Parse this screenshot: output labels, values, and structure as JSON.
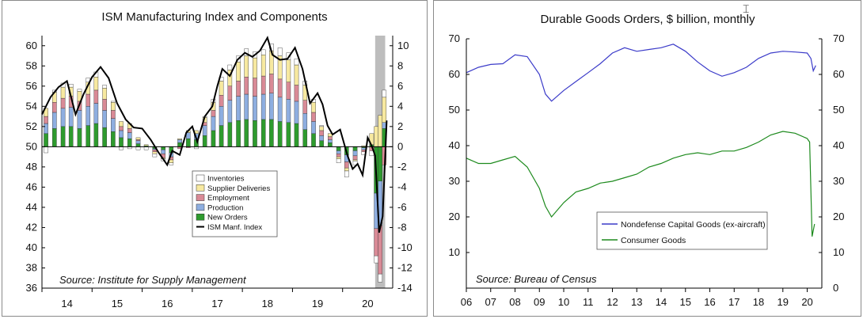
{
  "chart_data": [
    {
      "type": "bar",
      "title": "ISM Manufacturing Index and Components",
      "source": "Source: Institute for Supply Management",
      "left_axis": {
        "min": 36,
        "max": 61,
        "ticks": [
          36,
          38,
          40,
          42,
          44,
          46,
          48,
          50,
          52,
          54,
          56,
          58,
          60
        ]
      },
      "right_axis": {
        "min": -14,
        "max": 11,
        "ticks": [
          -14,
          -12,
          -10,
          -8,
          -6,
          -4,
          -2,
          0,
          2,
          4,
          6,
          8,
          10
        ]
      },
      "x_labels": [
        "14",
        "15",
        "16",
        "17",
        "18",
        "19",
        "20"
      ],
      "x_range": [
        2013.5,
        2020.5
      ],
      "recession_shade": [
        2020.15,
        2020.35
      ],
      "legend_position": "center",
      "colors": {
        "inventories": "#ffffff",
        "supplier": "#f7e9a0",
        "employment": "#d98a96",
        "production": "#8eaee0",
        "neworders": "#2e9b2e",
        "ism": "#000000",
        "shade": "#bdbdbd"
      },
      "series": [
        {
          "name": "Inventories",
          "key": "inventories"
        },
        {
          "name": "Supplier Deliveries",
          "key": "supplier"
        },
        {
          "name": "Employment",
          "key": "employment"
        },
        {
          "name": "Production",
          "key": "production"
        },
        {
          "name": "New Orders",
          "key": "neworders"
        },
        {
          "name": "ISM Manf. Index",
          "key": "ism"
        }
      ],
      "ism_points": [
        [
          2013.5,
          53.2
        ],
        [
          2013.67,
          54.9
        ],
        [
          2013.83,
          55.9
        ],
        [
          2014.0,
          56.5
        ],
        [
          2014.17,
          53.2
        ],
        [
          2014.33,
          55.2
        ],
        [
          2014.5,
          56.9
        ],
        [
          2014.67,
          57.9
        ],
        [
          2014.83,
          56.8
        ],
        [
          2015.0,
          54.3
        ],
        [
          2015.17,
          52.7
        ],
        [
          2015.33,
          51.9
        ],
        [
          2015.5,
          51.8
        ],
        [
          2015.67,
          50.7
        ],
        [
          2015.83,
          49.4
        ],
        [
          2016.0,
          48.2
        ],
        [
          2016.1,
          49.6
        ],
        [
          2016.25,
          49.2
        ],
        [
          2016.38,
          51.4
        ],
        [
          2016.5,
          52.0
        ],
        [
          2016.6,
          50.5
        ],
        [
          2016.75,
          53.0
        ],
        [
          2016.9,
          54.0
        ],
        [
          2017.0,
          56.0
        ],
        [
          2017.1,
          57.7
        ],
        [
          2017.25,
          57.0
        ],
        [
          2017.4,
          58.6
        ],
        [
          2017.55,
          59.3
        ],
        [
          2017.7,
          58.9
        ],
        [
          2017.85,
          59.5
        ],
        [
          2018.0,
          60.8
        ],
        [
          2018.1,
          59.1
        ],
        [
          2018.25,
          58.6
        ],
        [
          2018.4,
          58.7
        ],
        [
          2018.55,
          59.8
        ],
        [
          2018.7,
          57.7
        ],
        [
          2018.85,
          54.3
        ],
        [
          2019.0,
          55.3
        ],
        [
          2019.1,
          54.2
        ],
        [
          2019.2,
          52.1
        ],
        [
          2019.3,
          51.2
        ],
        [
          2019.45,
          51.7
        ],
        [
          2019.6,
          49.1
        ],
        [
          2019.7,
          47.8
        ],
        [
          2019.8,
          48.3
        ],
        [
          2019.9,
          47.2
        ],
        [
          2020.0,
          50.9
        ],
        [
          2020.08,
          50.1
        ],
        [
          2020.15,
          49.1
        ],
        [
          2020.23,
          41.5
        ],
        [
          2020.3,
          43.1
        ],
        [
          2020.38,
          52.6
        ]
      ],
      "bar_contributions": [
        [
          2013.58,
          -0.6,
          0.8,
          0.7,
          1.0,
          1.3
        ],
        [
          2013.75,
          0.2,
          1.0,
          1.0,
          1.6,
          1.8
        ],
        [
          2013.92,
          0.4,
          1.1,
          1.0,
          1.8,
          2.0
        ],
        [
          2014.08,
          0.3,
          0.9,
          1.1,
          1.9,
          2.0
        ],
        [
          2014.25,
          0.2,
          1.0,
          0.9,
          1.8,
          1.8
        ],
        [
          2014.42,
          0.4,
          1.2,
          1.2,
          1.9,
          2.1
        ],
        [
          2014.58,
          0.5,
          1.3,
          1.3,
          2.0,
          2.3
        ],
        [
          2014.75,
          0.3,
          1.1,
          1.1,
          1.7,
          1.9
        ],
        [
          2014.92,
          0.1,
          0.8,
          0.8,
          1.3,
          1.5
        ],
        [
          2015.08,
          -0.3,
          0.5,
          0.4,
          0.7,
          0.9
        ],
        [
          2015.25,
          -0.2,
          0.5,
          0.4,
          0.6,
          0.8
        ],
        [
          2015.42,
          -0.3,
          0.2,
          0.1,
          0.3,
          0.3
        ],
        [
          2015.58,
          -0.3,
          0.1,
          0.0,
          0.0,
          0.1
        ],
        [
          2015.75,
          -0.3,
          -0.2,
          -0.2,
          -0.1,
          -0.2
        ],
        [
          2015.92,
          -0.2,
          -0.1,
          -0.4,
          -0.4,
          -0.3
        ],
        [
          2016.08,
          -0.2,
          -0.3,
          -0.3,
          -0.4,
          -0.6
        ],
        [
          2016.25,
          0.0,
          0.1,
          -0.2,
          0.3,
          0.4
        ],
        [
          2016.42,
          0.0,
          0.2,
          -0.1,
          0.6,
          0.8
        ],
        [
          2016.58,
          -0.2,
          0.3,
          0.0,
          0.6,
          0.7
        ],
        [
          2016.75,
          0.1,
          0.5,
          0.3,
          1.0,
          1.1
        ],
        [
          2016.92,
          0.3,
          0.8,
          0.6,
          1.4,
          1.6
        ],
        [
          2017.08,
          0.4,
          1.4,
          1.1,
          1.9,
          2.1
        ],
        [
          2017.25,
          0.5,
          1.6,
          1.4,
          2.2,
          2.4
        ],
        [
          2017.42,
          0.6,
          1.9,
          1.5,
          2.4,
          2.6
        ],
        [
          2017.58,
          0.7,
          2.1,
          1.7,
          2.5,
          2.7
        ],
        [
          2017.75,
          0.6,
          2.0,
          1.8,
          2.4,
          2.6
        ],
        [
          2017.92,
          0.5,
          2.1,
          1.8,
          2.5,
          2.7
        ],
        [
          2018.08,
          0.7,
          2.3,
          1.9,
          2.6,
          2.7
        ],
        [
          2018.25,
          0.8,
          2.3,
          1.8,
          2.4,
          2.5
        ],
        [
          2018.42,
          0.7,
          2.2,
          1.7,
          2.3,
          2.4
        ],
        [
          2018.58,
          0.6,
          2.0,
          1.6,
          2.2,
          2.3
        ],
        [
          2018.75,
          0.4,
          1.5,
          1.3,
          1.6,
          1.7
        ],
        [
          2018.92,
          0.3,
          1.0,
          0.9,
          1.2,
          1.3
        ],
        [
          2019.08,
          0.1,
          0.4,
          0.5,
          0.5,
          0.6
        ],
        [
          2019.25,
          0.0,
          0.3,
          0.3,
          0.3,
          0.4
        ],
        [
          2019.42,
          -0.4,
          -0.2,
          -0.3,
          -0.3,
          -0.4
        ],
        [
          2019.58,
          -0.6,
          -0.3,
          -0.6,
          -0.7,
          -0.8
        ],
        [
          2019.75,
          -0.4,
          -0.1,
          -0.4,
          -0.5,
          -0.4
        ],
        [
          2019.92,
          -0.3,
          0.1,
          -0.2,
          -0.2,
          -0.1
        ],
        [
          2020.08,
          -0.5,
          1.1,
          -0.4,
          0.0,
          0.2
        ],
        [
          2020.17,
          -0.7,
          2.0,
          -2.7,
          -3.5,
          -4.6
        ],
        [
          2020.25,
          -0.8,
          3.1,
          -4.8,
          -4.4,
          -3.4
        ],
        [
          2020.33,
          0.7,
          2.5,
          -1.8,
          0.6,
          1.8
        ]
      ]
    },
    {
      "type": "line",
      "title": "Durable Goods Orders, $ billion, monthly",
      "source": "Source: Bureau of Census",
      "y_axis": {
        "min": 0,
        "max": 70,
        "ticks": [
          0,
          10,
          20,
          30,
          40,
          50,
          60,
          70
        ]
      },
      "x_labels": [
        "06",
        "07",
        "08",
        "09",
        "10",
        "11",
        "12",
        "13",
        "14",
        "15",
        "16",
        "17",
        "18",
        "19",
        "20"
      ],
      "x_range": [
        2006,
        2020.6
      ],
      "legend_position": "center-right",
      "colors": {
        "capital": "#3b3bc9",
        "consumer": "#1d8a1d"
      },
      "series": [
        {
          "name": "Nondefense Capital Goods (ex-aircraft)",
          "key": "capital",
          "points": [
            [
              2006.0,
              60.5
            ],
            [
              2006.5,
              62.0
            ],
            [
              2007.0,
              62.8
            ],
            [
              2007.5,
              63.0
            ],
            [
              2008.0,
              65.5
            ],
            [
              2008.5,
              65.0
            ],
            [
              2009.0,
              60.0
            ],
            [
              2009.25,
              54.5
            ],
            [
              2009.5,
              52.5
            ],
            [
              2010.0,
              55.5
            ],
            [
              2010.5,
              58.0
            ],
            [
              2011.0,
              60.5
            ],
            [
              2011.5,
              63.0
            ],
            [
              2012.0,
              66.0
            ],
            [
              2012.5,
              67.5
            ],
            [
              2013.0,
              66.5
            ],
            [
              2013.5,
              67.0
            ],
            [
              2014.0,
              67.5
            ],
            [
              2014.5,
              68.5
            ],
            [
              2015.0,
              66.5
            ],
            [
              2015.5,
              63.5
            ],
            [
              2016.0,
              61.0
            ],
            [
              2016.5,
              59.5
            ],
            [
              2017.0,
              60.5
            ],
            [
              2017.5,
              62.0
            ],
            [
              2018.0,
              64.5
            ],
            [
              2018.5,
              66.0
            ],
            [
              2019.0,
              66.5
            ],
            [
              2019.5,
              66.3
            ],
            [
              2020.0,
              66.0
            ],
            [
              2020.15,
              64.5
            ],
            [
              2020.25,
              61.0
            ],
            [
              2020.35,
              62.5
            ]
          ]
        },
        {
          "name": "Consumer Goods",
          "key": "consumer",
          "points": [
            [
              2006.0,
              36.5
            ],
            [
              2006.5,
              35.0
            ],
            [
              2007.0,
              35.0
            ],
            [
              2007.5,
              36.0
            ],
            [
              2008.0,
              37.0
            ],
            [
              2008.5,
              34.0
            ],
            [
              2009.0,
              28.0
            ],
            [
              2009.25,
              23.0
            ],
            [
              2009.5,
              20.0
            ],
            [
              2010.0,
              24.0
            ],
            [
              2010.5,
              27.0
            ],
            [
              2011.0,
              28.0
            ],
            [
              2011.5,
              29.5
            ],
            [
              2012.0,
              30.0
            ],
            [
              2012.5,
              31.0
            ],
            [
              2013.0,
              32.0
            ],
            [
              2013.5,
              34.0
            ],
            [
              2014.0,
              35.0
            ],
            [
              2014.5,
              36.5
            ],
            [
              2015.0,
              37.5
            ],
            [
              2015.5,
              38.0
            ],
            [
              2016.0,
              37.5
            ],
            [
              2016.5,
              38.5
            ],
            [
              2017.0,
              38.5
            ],
            [
              2017.5,
              39.5
            ],
            [
              2018.0,
              41.0
            ],
            [
              2018.5,
              43.0
            ],
            [
              2019.0,
              44.0
            ],
            [
              2019.5,
              43.5
            ],
            [
              2020.0,
              42.0
            ],
            [
              2020.1,
              41.0
            ],
            [
              2020.2,
              14.5
            ],
            [
              2020.3,
              18.0
            ]
          ]
        }
      ]
    }
  ]
}
